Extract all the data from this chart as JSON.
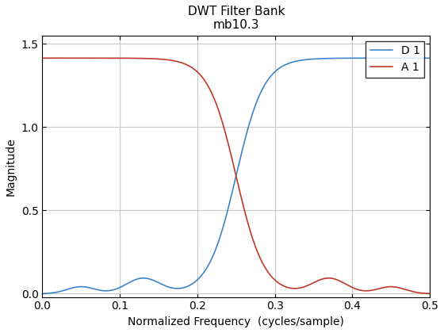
{
  "title_line1": "DWT Filter Bank",
  "title_line2": "mb10.3",
  "xlabel": "Normalized Frequency  (cycles/sample)",
  "ylabel": "Magnitude",
  "xlim": [
    0,
    0.5
  ],
  "ylim": [
    -0.02,
    1.55
  ],
  "yticks": [
    0,
    0.5,
    1.0,
    1.5
  ],
  "xticks": [
    0,
    0.1,
    0.2,
    0.3,
    0.4,
    0.5
  ],
  "color_d1": "#3d85c8",
  "color_a1": "#c0392b",
  "label_d1": "D 1",
  "label_a1": "A 1",
  "legend_loc": "upper right",
  "grid": true,
  "bg_color": "#ffffff",
  "linewidth": 1.2,
  "scale": 1.414
}
